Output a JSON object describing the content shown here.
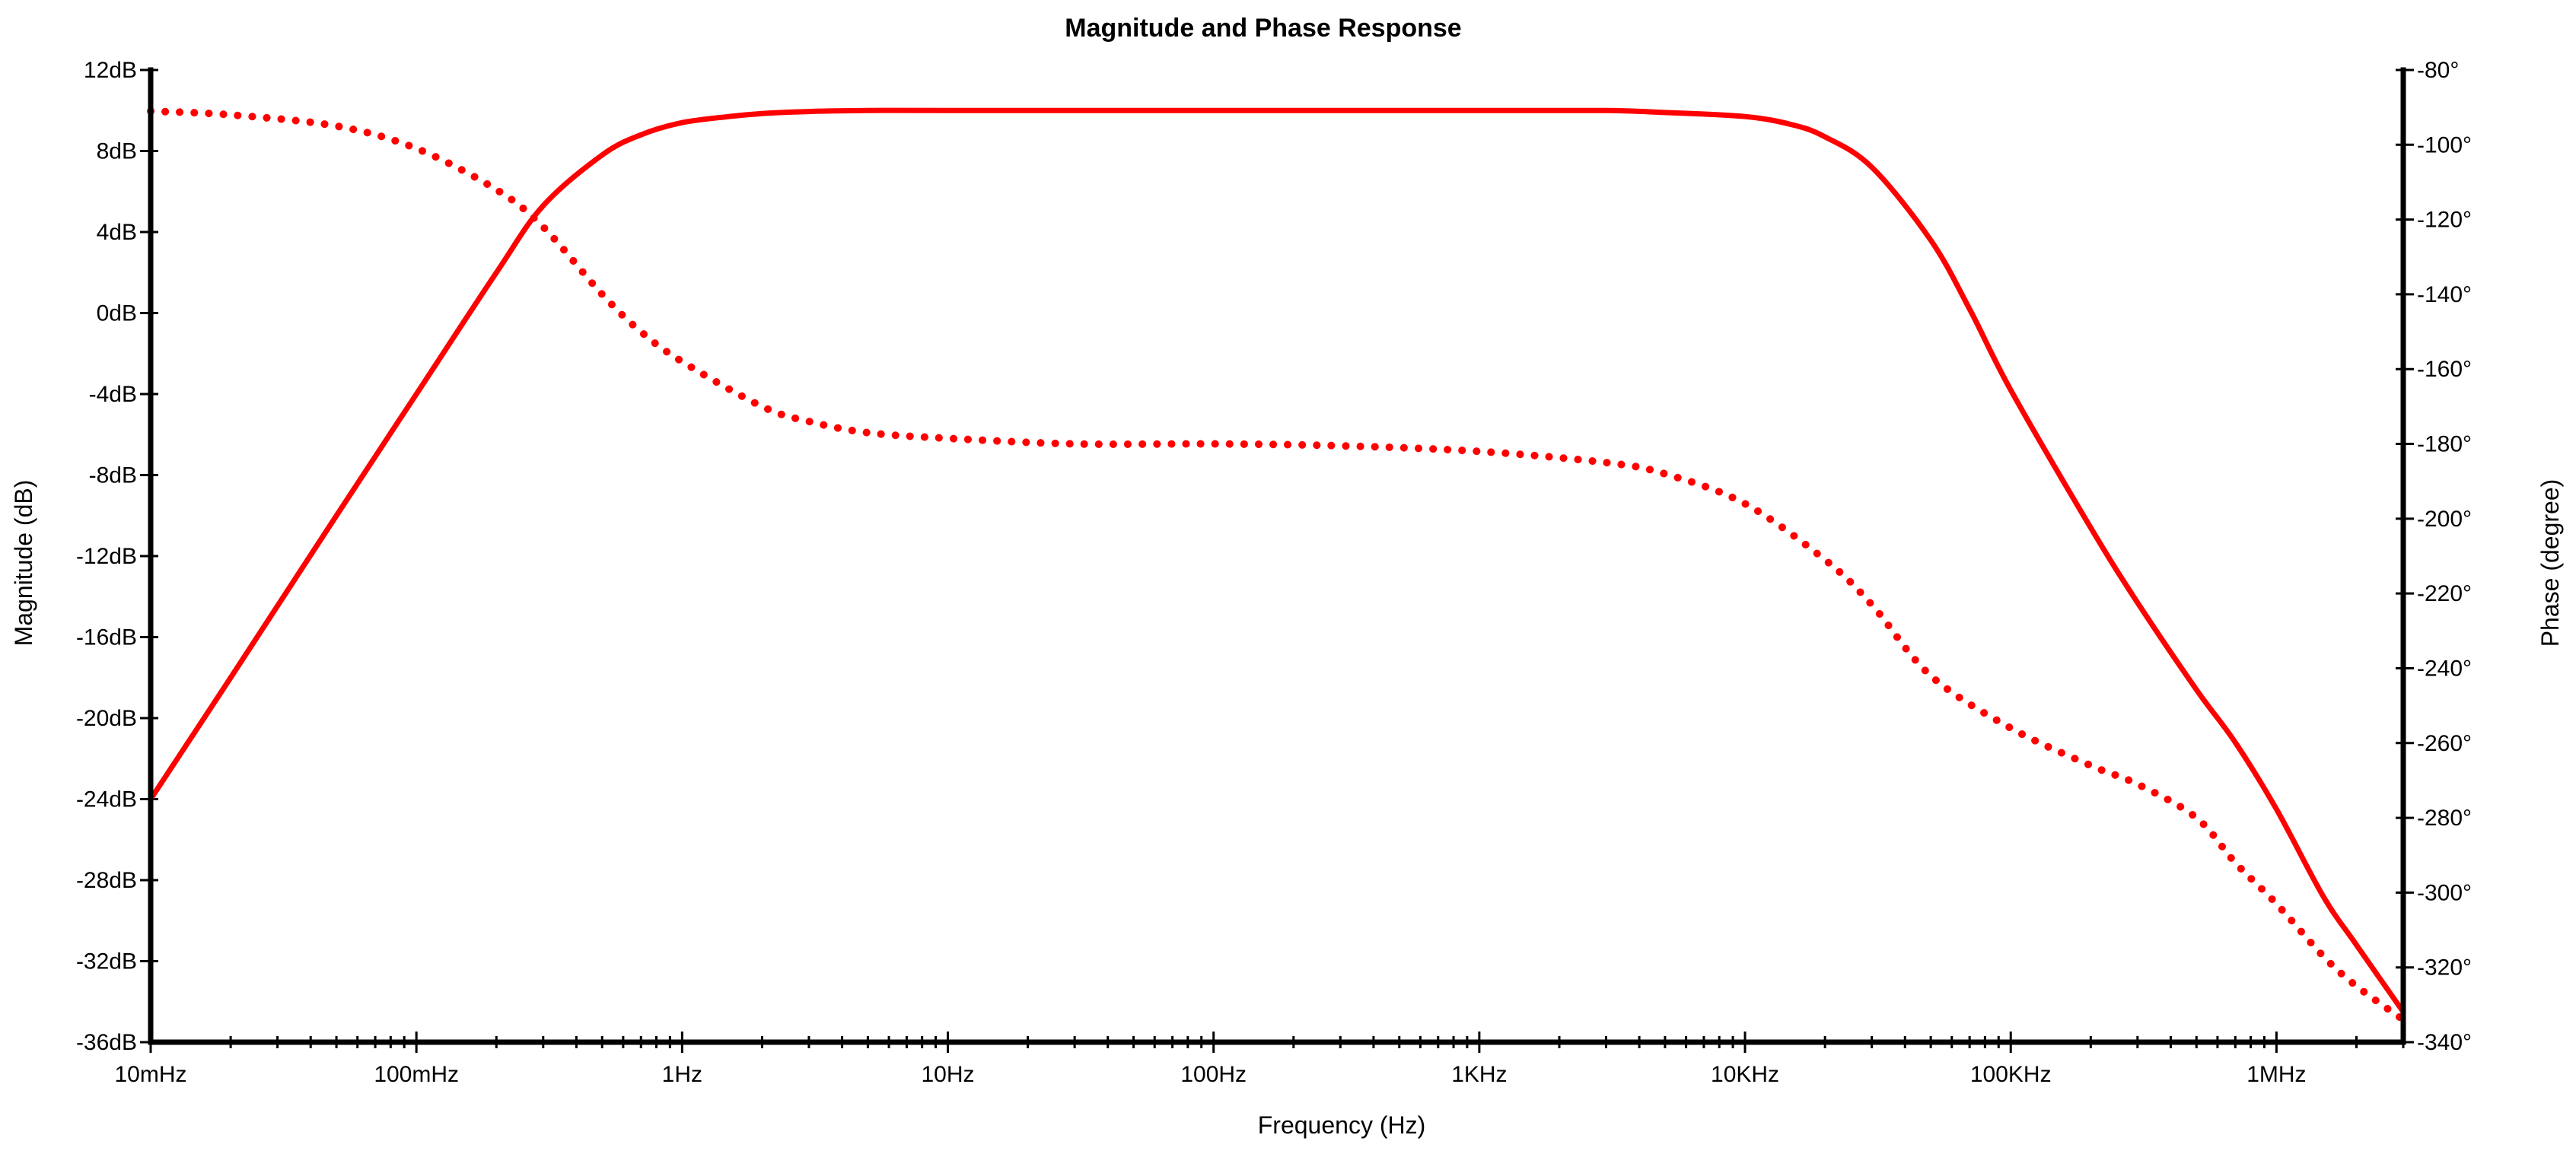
{
  "chart_data": {
    "type": "line",
    "title": "Magnitude and Phase Response",
    "xlabel": "Frequency (Hz)",
    "ylabel_left": "Magnitude (dB)",
    "ylabel_right": "Phase (degree)",
    "x_scale": "log",
    "xlim": [
      0.01,
      3000000
    ],
    "ylim_left": [
      -36,
      12
    ],
    "ylim_right": [
      -340,
      -80
    ],
    "x_ticks": [
      {
        "value": 0.01,
        "label": "10mHz"
      },
      {
        "value": 0.1,
        "label": "100mHz"
      },
      {
        "value": 1,
        "label": "1Hz"
      },
      {
        "value": 10,
        "label": "10Hz"
      },
      {
        "value": 100,
        "label": "100Hz"
      },
      {
        "value": 1000,
        "label": "1KHz"
      },
      {
        "value": 10000,
        "label": "10KHz"
      },
      {
        "value": 100000,
        "label": "100KHz"
      },
      {
        "value": 1000000,
        "label": "1MHz"
      }
    ],
    "y_left_ticks": [
      {
        "value": 12,
        "label": "12dB"
      },
      {
        "value": 8,
        "label": "8dB"
      },
      {
        "value": 4,
        "label": "4dB"
      },
      {
        "value": 0,
        "label": "0dB"
      },
      {
        "value": -4,
        "label": "-4dB"
      },
      {
        "value": -8,
        "label": "-8dB"
      },
      {
        "value": -12,
        "label": "-12dB"
      },
      {
        "value": -16,
        "label": "-16dB"
      },
      {
        "value": -20,
        "label": "-20dB"
      },
      {
        "value": -24,
        "label": "-24dB"
      },
      {
        "value": -28,
        "label": "-28dB"
      },
      {
        "value": -32,
        "label": "-32dB"
      },
      {
        "value": -36,
        "label": "-36dB"
      }
    ],
    "y_right_ticks": [
      {
        "value": -80,
        "label": "-80°"
      },
      {
        "value": -100,
        "label": "-100°"
      },
      {
        "value": -120,
        "label": "-120°"
      },
      {
        "value": -140,
        "label": "-140°"
      },
      {
        "value": -160,
        "label": "-160°"
      },
      {
        "value": -180,
        "label": "-180°"
      },
      {
        "value": -200,
        "label": "-200°"
      },
      {
        "value": -220,
        "label": "-220°"
      },
      {
        "value": -240,
        "label": "-240°"
      },
      {
        "value": -260,
        "label": "-260°"
      },
      {
        "value": -280,
        "label": "-280°"
      },
      {
        "value": -300,
        "label": "-300°"
      },
      {
        "value": -320,
        "label": "-320°"
      },
      {
        "value": -340,
        "label": "-340°"
      }
    ],
    "series": [
      {
        "name": "Magnitude",
        "axis": "left",
        "style": "solid",
        "color": "#ff0000",
        "x": [
          0.01,
          0.02,
          0.05,
          0.1,
          0.2,
          0.3,
          0.5,
          0.7,
          1,
          1.5,
          2,
          3,
          5,
          10,
          100,
          1000,
          3000,
          5000,
          10000,
          15000,
          20000,
          30000,
          50000,
          70000,
          100000,
          200000,
          300000,
          500000,
          700000,
          1000000,
          1500000,
          2000000,
          3000000
        ],
        "values": [
          -24,
          -18,
          -10,
          -4,
          2,
          5.3,
          7.8,
          8.8,
          9.4,
          9.7,
          9.85,
          9.95,
          10,
          10,
          10,
          10,
          10,
          9.9,
          9.7,
          9.3,
          8.7,
          7.2,
          3.6,
          0.2,
          -3.8,
          -10.6,
          -14.3,
          -18.6,
          -21.2,
          -24.5,
          -28.8,
          -31.2,
          -34.5
        ]
      },
      {
        "name": "Phase",
        "axis": "right",
        "style": "dotted",
        "color": "#ff0000",
        "x": [
          0.01,
          0.02,
          0.05,
          0.1,
          0.2,
          0.3,
          0.5,
          0.7,
          1,
          2,
          3,
          5,
          10,
          30,
          100,
          300,
          1000,
          3000,
          5000,
          10000,
          20000,
          30000,
          50000,
          100000,
          200000,
          300000,
          500000,
          700000,
          1000000,
          1500000,
          2000000,
          3000000
        ],
        "values": [
          -91,
          -92,
          -95,
          -101,
          -112,
          -122,
          -140,
          -150,
          -158,
          -170,
          -174,
          -177,
          -178.5,
          -180,
          -180,
          -180.5,
          -182,
          -185,
          -188,
          -196,
          -211,
          -223,
          -242,
          -256,
          -266,
          -271,
          -280,
          -292,
          -303,
          -317,
          -325,
          -334
        ]
      }
    ]
  }
}
